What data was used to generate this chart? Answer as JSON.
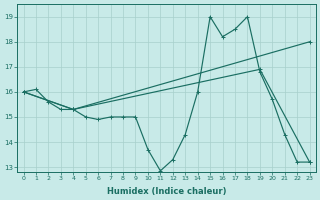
{
  "xlabel": "Humidex (Indice chaleur)",
  "bg_color": "#c8eae8",
  "line_color": "#1a6e62",
  "grid_color": "#a8d0cc",
  "xlim": [
    -0.5,
    23.5
  ],
  "ylim": [
    12.8,
    19.5
  ],
  "xticks": [
    0,
    1,
    2,
    3,
    4,
    5,
    6,
    7,
    8,
    9,
    10,
    11,
    12,
    13,
    14,
    15,
    16,
    17,
    18,
    19,
    20,
    21,
    22,
    23
  ],
  "yticks": [
    13,
    14,
    15,
    16,
    17,
    18,
    19
  ],
  "line1_x": [
    0,
    1,
    2,
    3,
    4,
    5,
    6,
    7,
    8,
    9,
    10,
    11,
    12,
    13,
    14,
    15,
    16,
    17,
    18,
    19,
    20,
    21,
    22,
    23
  ],
  "line1_y": [
    16.0,
    16.1,
    15.6,
    15.3,
    15.3,
    15.0,
    14.9,
    15.0,
    15.0,
    15.0,
    13.7,
    12.85,
    13.3,
    14.3,
    16.0,
    19.0,
    18.2,
    18.5,
    19.0,
    16.8,
    15.7,
    14.3,
    13.2,
    13.2
  ],
  "line2_x": [
    0,
    4,
    23
  ],
  "line2_y": [
    16.0,
    15.3,
    18.0
  ],
  "line3_x": [
    0,
    4,
    19,
    23
  ],
  "line3_y": [
    16.0,
    15.3,
    16.9,
    13.2
  ]
}
